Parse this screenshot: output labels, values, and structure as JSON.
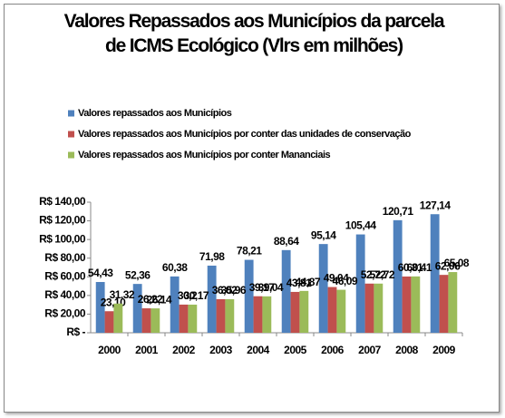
{
  "chart_data": {
    "type": "bar",
    "title": "Valores Repassados aos Municípios da parcela de ICMS Ecológico (Vlrs em milhões)",
    "categories": [
      "2000",
      "2001",
      "2002",
      "2003",
      "2004",
      "2005",
      "2006",
      "2007",
      "2008",
      "2009"
    ],
    "series": [
      {
        "name": "Valores repassados aos Municípios",
        "color": "#4f81bd",
        "values": [
          54.43,
          52.36,
          60.38,
          71.98,
          78.21,
          88.64,
          95.14,
          105.44,
          120.71,
          127.14
        ],
        "value_labels": [
          "54,43",
          "52,36",
          "60,38",
          "71,98",
          "78,21",
          "88,64",
          "95,14",
          "105,44",
          "120,71",
          "127,14"
        ]
      },
      {
        "name": "Valores repassados aos Municípios por conter das unidades de conservação",
        "color": "#c0504d",
        "values": [
          23.1,
          26.22,
          30.2,
          36.02,
          39.17,
          43.81,
          49.04,
          52.72,
          60.31,
          62.06
        ],
        "value_labels": [
          "23,10",
          "26,22",
          "30,2",
          "36,02",
          "39,17",
          "43,81",
          "49,04",
          "52,72",
          "60,31",
          "62,06"
        ]
      },
      {
        "name": "Valores repassados aos Municípios por conter Mananciais",
        "color": "#9bbb59",
        "values": [
          31.32,
          26.14,
          30.17,
          35.96,
          39.04,
          44.87,
          46.09,
          52.72,
          60.41,
          65.08
        ],
        "value_labels": [
          "31,32",
          "26,14",
          "30,17",
          "35,96",
          "39,04",
          "44,87",
          "46,09",
          "52,72",
          "60,41",
          "65,08"
        ]
      }
    ],
    "ylim": [
      0,
      140
    ],
    "yticks": [
      {
        "value": 0,
        "label": "R$ -"
      },
      {
        "value": 20,
        "label": "R$ 20,00"
      },
      {
        "value": 40,
        "label": "R$ 40,00"
      },
      {
        "value": 60,
        "label": "R$ 60,00"
      },
      {
        "value": 80,
        "label": "R$ 80,00"
      },
      {
        "value": 100,
        "label": "R$ 100,00"
      },
      {
        "value": 120,
        "label": "R$ 120,00"
      },
      {
        "value": 140,
        "label": "R$ 140,00"
      }
    ],
    "legend": "top"
  }
}
